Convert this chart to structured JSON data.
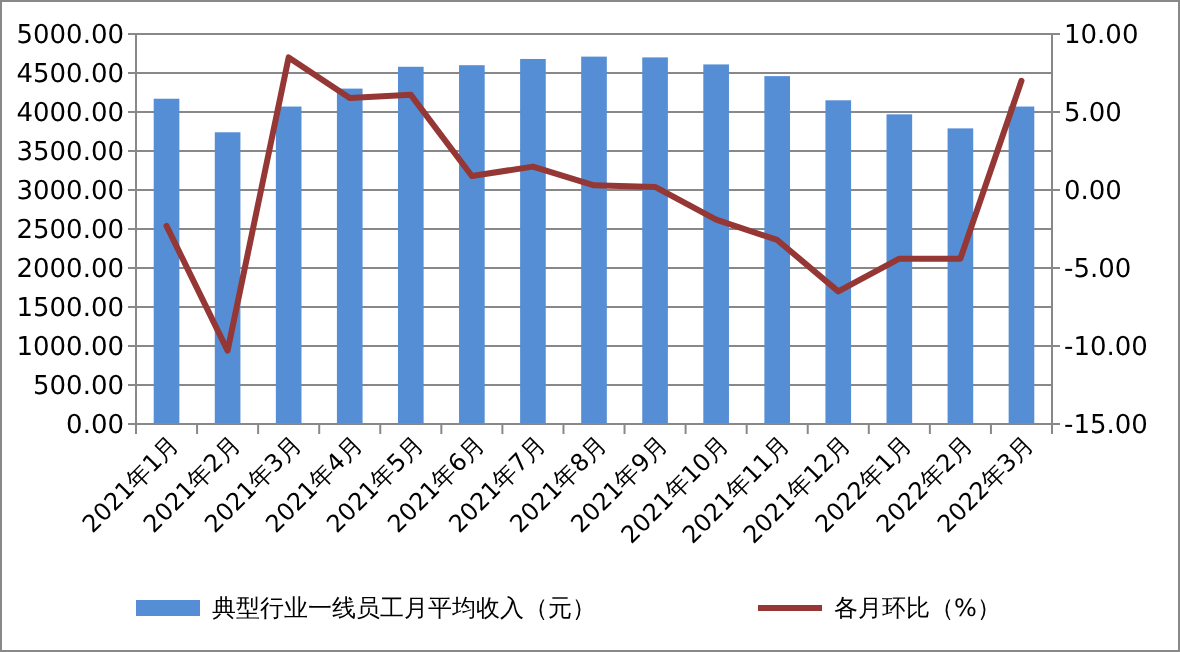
{
  "chart_data": {
    "type": "bar",
    "categories": [
      "2021年1月",
      "2021年2月",
      "2021年3月",
      "2021年4月",
      "2021年5月",
      "2021年6月",
      "2021年7月",
      "2021年8月",
      "2021年9月",
      "2021年10月",
      "2021年11月",
      "2021年12月",
      "2022年1月",
      "2022年2月",
      "2022年3月"
    ],
    "series": [
      {
        "name": "典型行业一线员工月平均收入（元）",
        "color": "#558ed5",
        "values": [
          4170,
          3740,
          4070,
          4300,
          4580,
          4600,
          4680,
          4710,
          4700,
          4610,
          4460,
          4150,
          3970,
          3790,
          4070
        ]
      },
      {
        "name": "各月环比（%）",
        "type": "line",
        "axis": "y2",
        "color": "#953735",
        "values": [
          -2.3,
          -10.3,
          8.5,
          5.9,
          6.1,
          0.9,
          1.5,
          0.3,
          0.2,
          -1.9,
          -3.2,
          -6.5,
          -4.4,
          -4.4,
          7.0
        ]
      }
    ],
    "ylim": [
      0,
      5000
    ],
    "yticks": [
      {
        "value": 0,
        "label": "0.00"
      },
      {
        "value": 500,
        "label": "500.00"
      },
      {
        "value": 1000,
        "label": "1000.00"
      },
      {
        "value": 1500,
        "label": "1500.00"
      },
      {
        "value": 2000,
        "label": "2000.00"
      },
      {
        "value": 2500,
        "label": "2500.00"
      },
      {
        "value": 3000,
        "label": "3000.00"
      },
      {
        "value": 3500,
        "label": "3500.00"
      },
      {
        "value": 4000,
        "label": "4000.00"
      },
      {
        "value": 4500,
        "label": "4500.00"
      },
      {
        "value": 5000,
        "label": "5000.00"
      }
    ],
    "y2lim": [
      -15,
      10
    ],
    "y2ticks": [
      {
        "value": -15,
        "label": "-15.00"
      },
      {
        "value": -10,
        "label": "-10.00"
      },
      {
        "value": -5,
        "label": "-5.00"
      },
      {
        "value": 0,
        "label": "0.00"
      },
      {
        "value": 5,
        "label": "5.00"
      },
      {
        "value": 10,
        "label": "10.00"
      }
    ],
    "grid": "y",
    "legend": "bottom"
  }
}
